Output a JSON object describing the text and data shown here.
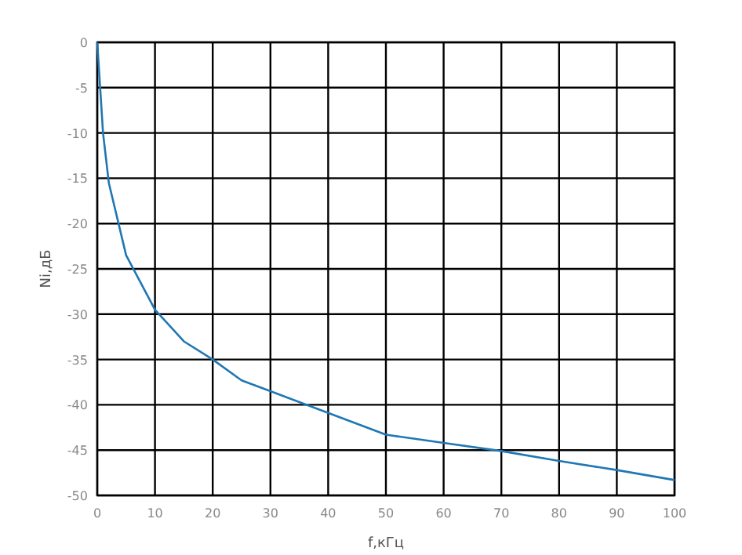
{
  "chart_data": {
    "type": "line",
    "xlabel": "f,кГц",
    "ylabel": "Ni,дБ",
    "x": [
      0,
      0.5,
      1,
      2,
      5,
      10,
      15,
      20,
      25,
      30,
      40,
      50,
      60,
      70,
      80,
      90,
      100
    ],
    "series": [
      {
        "color": "#1f77b4",
        "values": [
          0,
          -5,
          -10,
          -15.5,
          -23.5,
          -29.5,
          -33,
          -35,
          -37.3,
          -38.5,
          -40.9,
          -43.3,
          -44.2,
          -45.1,
          -46.2,
          -47.2,
          -48.3
        ]
      }
    ],
    "xlim": [
      0,
      100
    ],
    "xticks": [
      0,
      10,
      20,
      30,
      40,
      50,
      60,
      70,
      80,
      90,
      100
    ],
    "ylim": [
      -50,
      0
    ],
    "yticks": [
      -50,
      -45,
      -40,
      -35,
      -30,
      -25,
      -20,
      -15,
      -10,
      -5,
      0
    ],
    "grid": true,
    "marker": "none",
    "line_style": "solid"
  }
}
